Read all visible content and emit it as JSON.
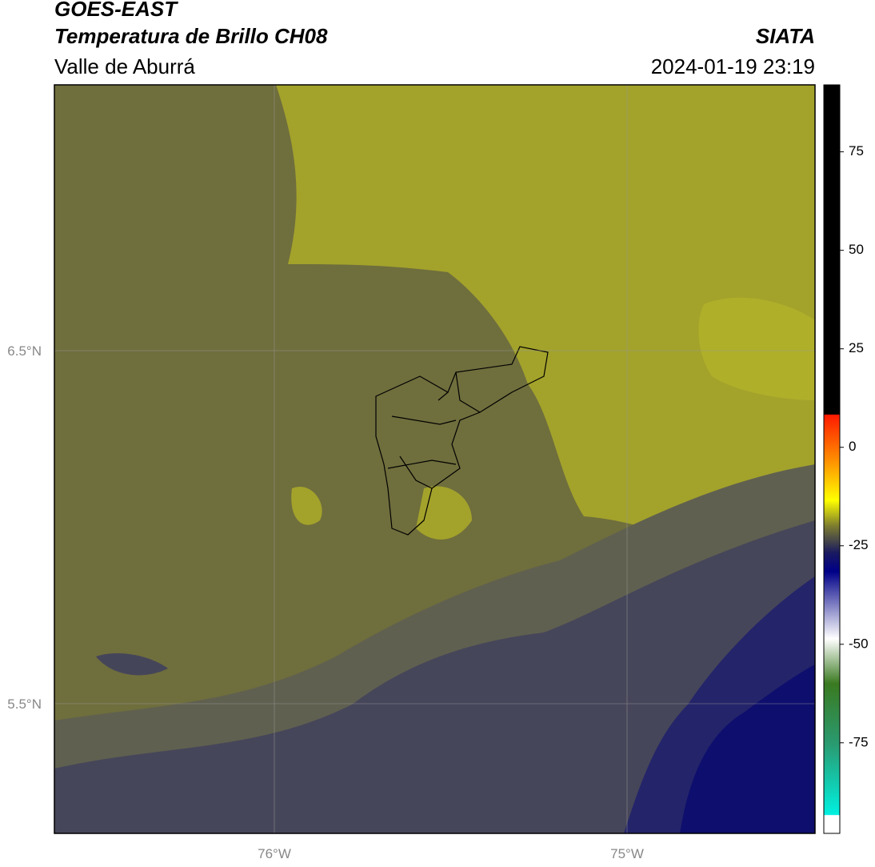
{
  "header": {
    "title": "GOES-EAST",
    "subtitle": "Temperatura de Brillo CH08",
    "region": "Valle de Aburrá",
    "agency": "SIATA",
    "datetime": "2024-01-19 23:19"
  },
  "map": {
    "lat_labels": [
      "6.5°N",
      "5.5°N"
    ],
    "lon_labels": [
      "76°W",
      "75°W"
    ]
  },
  "colorbar": {
    "lim": [
      -98,
      92
    ],
    "ticks": [
      75,
      50,
      25,
      0,
      -25,
      -50,
      -75
    ]
  }
}
